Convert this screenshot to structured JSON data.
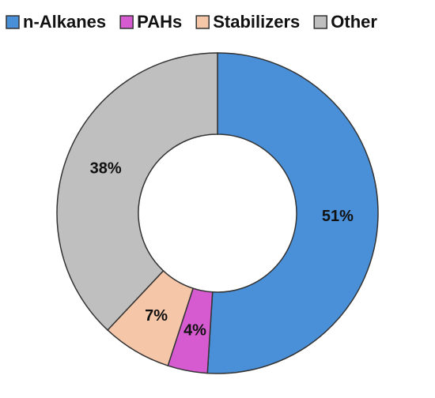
{
  "chart_data": {
    "type": "donut",
    "categories": [
      "n-Alkanes",
      "PAHs",
      "Stabilizers",
      "Other"
    ],
    "values": [
      51,
      4,
      7,
      38
    ],
    "value_labels": [
      "51%",
      "4%",
      "7%",
      "38%"
    ],
    "colors": [
      "#4a90d9",
      "#d65ad0",
      "#f5c6a8",
      "#bfbfbf"
    ],
    "legend": "top"
  }
}
